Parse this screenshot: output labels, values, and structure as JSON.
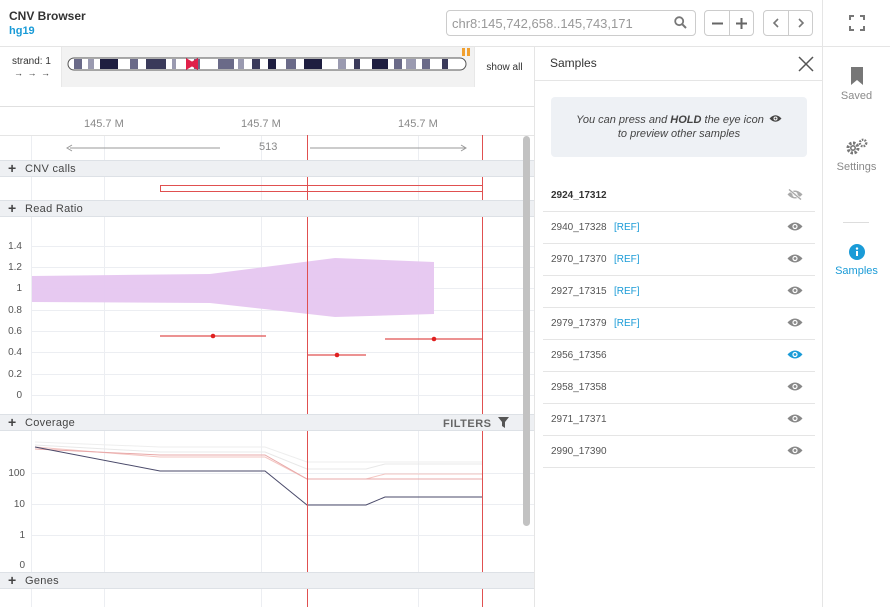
{
  "app": {
    "title": "CNV Browser",
    "genome": "hg19"
  },
  "search": {
    "placeholder": "chr8:145,742,658..145,743,171"
  },
  "ideogram": {
    "strand_label": "strand: 1",
    "strand_arrows": "→ → →",
    "show_all_label": "show all"
  },
  "ruler": {
    "ticks": [
      "145.7 M",
      "145.7 M",
      "145.7 M"
    ],
    "span": "513"
  },
  "tracks": {
    "cnv_calls": {
      "label": "CNV calls"
    },
    "read_ratio": {
      "label": "Read Ratio",
      "y_ticks": [
        "1.4",
        "1.2",
        "1",
        "0.8",
        "0.6",
        "0.4",
        "0.2",
        "0"
      ]
    },
    "coverage": {
      "label": "Coverage",
      "filters_label": "FILTERS",
      "y_ticks": [
        "100",
        "10",
        "1",
        "0"
      ]
    },
    "genes": {
      "label": "Genes"
    }
  },
  "samples_panel": {
    "title": "Samples",
    "hint_pre": "You can press and ",
    "hint_bold": "HOLD",
    "hint_post": " the eye icon",
    "hint_line2": "to preview other samples",
    "ref_tag": "[REF]",
    "samples": [
      {
        "id": "2924_17312",
        "ref": false,
        "selected": true,
        "eye": "hidden"
      },
      {
        "id": "2940_17328",
        "ref": true,
        "eye": "normal"
      },
      {
        "id": "2970_17370",
        "ref": true,
        "eye": "normal"
      },
      {
        "id": "2927_17315",
        "ref": true,
        "eye": "normal"
      },
      {
        "id": "2979_17379",
        "ref": true,
        "eye": "normal"
      },
      {
        "id": "2956_17356",
        "ref": false,
        "eye": "active"
      },
      {
        "id": "2958_17358",
        "ref": false,
        "eye": "normal"
      },
      {
        "id": "2971_17371",
        "ref": false,
        "eye": "normal"
      },
      {
        "id": "2990_17390",
        "ref": false,
        "eye": "normal"
      }
    ]
  },
  "sidebar": {
    "items": [
      {
        "label": "Saved",
        "icon": "bookmark-icon"
      },
      {
        "label": "Settings",
        "icon": "gear-icon"
      },
      {
        "label": "Samples",
        "icon": "info-icon",
        "active": true
      }
    ]
  },
  "colors": {
    "accent": "#1a9bd7",
    "cnv": "#e05050",
    "ratio_band": "#e6c6f0"
  }
}
